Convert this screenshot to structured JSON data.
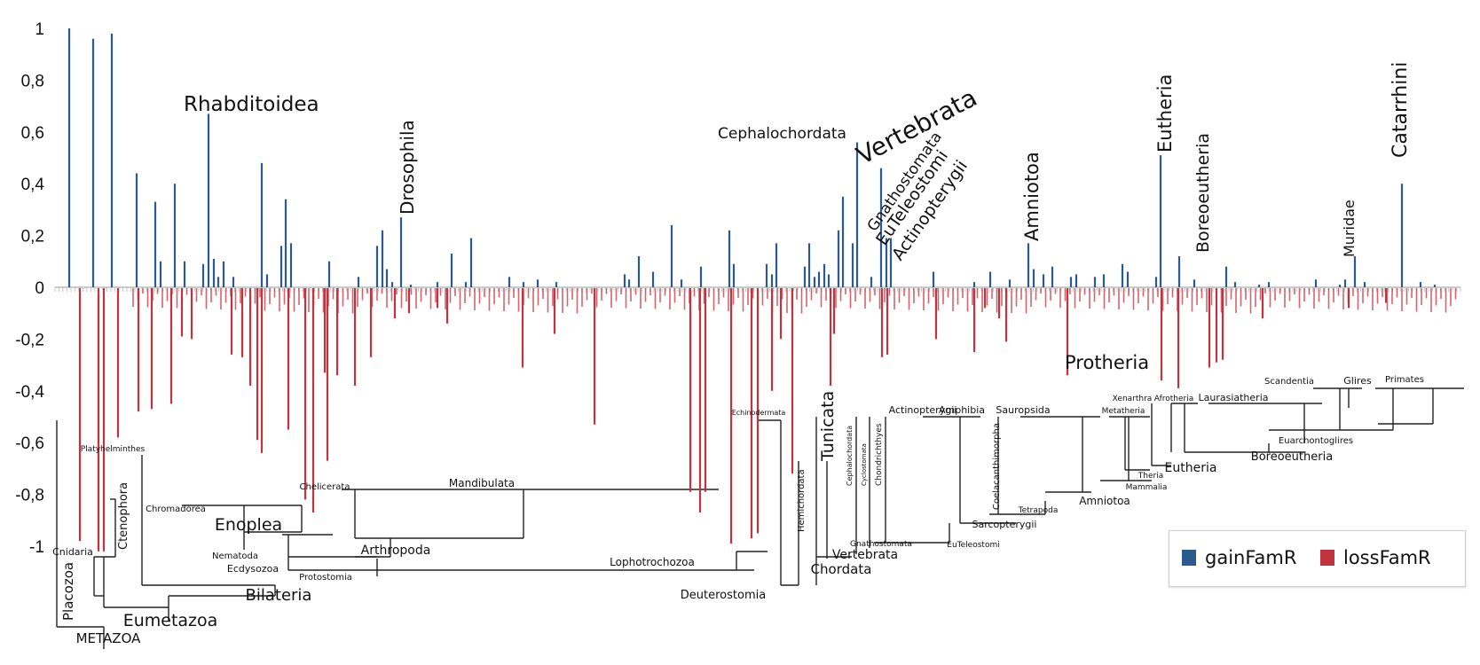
{
  "chart_data": {
    "type": "bar",
    "title": "",
    "xlabel": "",
    "ylabel": "",
    "ylim": [
      -1,
      1
    ],
    "y_ticks": [
      "1",
      "0,8",
      "0,6",
      "0,4",
      "0,2",
      "0",
      "-0,2",
      "-0,4",
      "-0,6",
      "-0,8",
      "-1"
    ],
    "y_tick_values": [
      1,
      0.8,
      0.6,
      0.4,
      0.2,
      0,
      -0.2,
      -0.4,
      -0.6,
      -0.8,
      -1
    ],
    "series": [
      {
        "name": "gainFamR",
        "color": "#2b5a8f",
        "values": [
          1.0,
          0.96,
          0.98,
          0.44,
          0.33,
          0.1,
          0.4,
          0.1,
          0.09,
          0.67,
          0.11,
          0.04,
          0.1,
          0.04,
          0.48,
          0.05,
          0.16,
          0.34,
          0.17,
          0.1,
          0.04,
          0.16,
          0.22,
          0.07,
          0.02,
          0.27,
          0.01,
          0.02,
          0.13,
          0.02,
          0.19,
          0.04,
          0.02,
          0.03,
          0.02,
          0.05,
          0.03,
          0.12,
          0.06,
          0.24,
          0.03,
          0.08,
          0.22,
          0.09,
          0.09,
          0.05,
          0.17,
          0.08,
          0.17,
          0.04,
          0.06,
          0.09,
          0.05,
          0.22,
          0.35,
          0.17,
          0.56,
          0.04,
          0.46,
          0.19,
          0.19,
          0.06,
          0.02,
          0.06,
          0.03,
          0.17,
          0.07,
          0.05,
          0.08,
          0.04,
          0.05,
          0.04,
          0.05,
          0.09,
          0.06,
          0.04,
          0.51,
          0.12,
          0.03,
          0.08,
          0.02,
          0.01,
          0.02,
          0.03,
          0.01,
          0.03,
          0.12,
          0.02,
          0.4,
          0.02,
          0.01
        ]
      },
      {
        "name": "lossFamR",
        "color": "#c0333f",
        "values": [
          -0.98,
          -1.02,
          -1.02,
          -0.58,
          -0.48,
          -0.47,
          -0.45,
          -0.19,
          -0.2,
          -0.26,
          -0.27,
          -0.38,
          -0.59,
          -0.64,
          -0.55,
          -0.82,
          -0.87,
          -0.67,
          -0.33,
          -0.34,
          -0.38,
          -0.27,
          -0.12,
          -0.1,
          -0.08,
          -0.14,
          -0.31,
          -0.18,
          -0.53,
          -0.79,
          -0.87,
          -0.79,
          -0.99,
          -0.97,
          -0.95,
          -0.4,
          -0.2,
          -0.72,
          -0.38,
          -0.18,
          -0.27,
          -0.26,
          -0.2,
          -0.25,
          -0.08,
          -0.12,
          -0.21,
          -0.34,
          -0.36,
          -0.39,
          -0.31,
          -0.29,
          -0.28,
          -0.12,
          -0.08,
          -0.06
        ]
      }
    ],
    "annotations": [
      "Rhabditoidea",
      "Drosophila",
      "Cephalochordata",
      "Vertebrata",
      "Gnathostomata",
      "EuTeleostomi",
      "Actinopterygii",
      "Amniotoa",
      "Eutheria",
      "Boreoeutheria",
      "Muridae",
      "Catarrhini",
      "Protheria"
    ],
    "legend_position": "bottom-right"
  },
  "tree_labels": {
    "metazoa": "METAZOA",
    "eumetazoa": "Eumetazoa",
    "placozoa": "Placozoa",
    "cnidaria": "Cnidaria",
    "ctenophora": "Ctenophora",
    "bilateria": "Bilateria",
    "platyhelminthes": "Platyhelminthes",
    "chromadorea": "Chromadorea",
    "enoplea": "Enoplea",
    "nematoda": "Nematoda",
    "ecdysozoa": "Ecdysozoa",
    "protostomia": "Protostomia",
    "chelicerata": "Chelicerata",
    "mandibulata": "Mandibulata",
    "arthropoda": "Arthropoda",
    "lophotrochozoa": "Lophotrochozoa",
    "deuterostomia": "Deuterostomia",
    "echinodermata": "Echinodermata",
    "hemichordata": "Hemichordata",
    "tunicata": "Tunicata",
    "cephalochordata": "Cephalochordata",
    "cyclostomata": "Cyclostomata",
    "chondrichthyes": "Chondrichthyes",
    "chordata": "Chordata",
    "vertebrata": "Vertebrata",
    "gnathostomata": "Gnathostomata",
    "actinopterygii": "Actinopterygii",
    "coelacanthimorpha": "Coelacanthimorpha",
    "euteleostomi": "EuTeleostomi",
    "sarcopterygii": "Sarcopterygii",
    "amphibia": "Amphibia",
    "tetrapoda": "Tetrapoda",
    "sauropsida": "Sauropsida",
    "amniotoa": "Amniotoa",
    "metatheria": "Metatheria",
    "mammalia": "Mammalia",
    "theria": "Theria",
    "xenarthra": "Xenarthra",
    "afrotheria": "Afrotheria",
    "eutheria": "Eutheria",
    "laurasiatheria": "Laurasiatheria",
    "boreoeutheria": "Boreoeutheria",
    "scandentia": "Scandentia",
    "glires": "Glires",
    "primates": "Primates",
    "euarchontoglires": "Euarchontoglires"
  }
}
